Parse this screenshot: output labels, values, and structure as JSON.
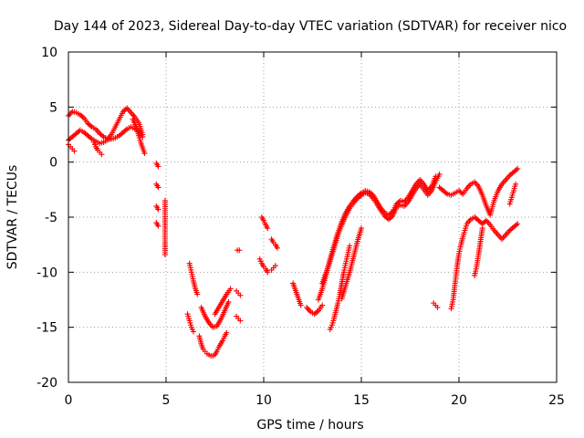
{
  "chart_data": {
    "type": "scatter",
    "title": "Day 144 of 2023, Sidereal Day-to-day VTEC variation (SDTVAR) for receiver nico",
    "xlabel": "GPS time / hours",
    "ylabel": "SDTVAR / TECUs",
    "xlim": [
      0,
      25
    ],
    "ylim": [
      -20,
      10
    ],
    "xticks": [
      0,
      5,
      10,
      15,
      20,
      25
    ],
    "yticks": [
      -20,
      -15,
      -10,
      -5,
      0,
      5,
      10
    ],
    "xtick_labels": [
      "0",
      "5",
      "10",
      "15",
      "20",
      "25"
    ],
    "ytick_labels": [
      "-20",
      "-15",
      "-10",
      "-5",
      "0",
      "5",
      "10"
    ],
    "grid": true,
    "marker": "plus",
    "color": "#ff0000",
    "series": [
      {
        "name": "SDTVAR",
        "segments": [
          {
            "x": [
              0.0,
              0.2,
              0.4,
              0.6,
              0.8,
              1.0,
              1.2,
              1.4,
              1.6,
              1.8,
              2.0,
              2.2,
              2.4,
              2.6,
              2.8,
              3.0,
              3.2,
              3.4,
              3.6,
              3.8
            ],
            "y": [
              4.2,
              4.6,
              4.5,
              4.3,
              4.0,
              3.5,
              3.2,
              3.0,
              2.6,
              2.3,
              2.1,
              2.5,
              3.2,
              3.9,
              4.6,
              4.9,
              4.5,
              4.1,
              3.6,
              2.5
            ]
          },
          {
            "x": [
              0.0,
              0.2,
              0.4,
              0.6,
              0.8,
              1.0,
              1.2,
              1.4,
              1.6,
              1.8,
              2.0,
              2.2,
              2.4,
              2.6,
              2.8,
              3.0,
              3.2,
              3.4,
              3.6,
              3.8
            ],
            "y": [
              2.0,
              2.3,
              2.6,
              2.9,
              2.7,
              2.4,
              2.1,
              1.9,
              1.7,
              1.8,
              2.0,
              2.1,
              2.2,
              2.4,
              2.7,
              3.0,
              3.2,
              3.0,
              2.8,
              2.3
            ]
          },
          {
            "x": [
              0.0,
              0.1,
              0.2,
              0.3
            ],
            "y": [
              1.6,
              1.4,
              1.2,
              1.0
            ]
          },
          {
            "x": [
              1.3,
              1.4,
              1.5,
              1.6,
              1.7
            ],
            "y": [
              1.8,
              1.4,
              1.1,
              0.9,
              0.7
            ]
          },
          {
            "x": [
              3.3,
              3.5,
              3.6,
              3.7,
              3.8,
              3.9
            ],
            "y": [
              3.9,
              3.1,
              2.4,
              1.8,
              1.3,
              0.8
            ]
          },
          {
            "x": [
              4.5,
              4.6
            ],
            "y": [
              -0.1,
              -0.4
            ]
          },
          {
            "x": [
              4.5,
              4.6
            ],
            "y": [
              -2.0,
              -2.3
            ]
          },
          {
            "x": [
              4.5,
              4.6
            ],
            "y": [
              -4.0,
              -4.3
            ]
          },
          {
            "x": [
              4.5,
              4.6
            ],
            "y": [
              -5.5,
              -5.8
            ]
          },
          {
            "x": [
              4.95,
              4.95,
              4.95
            ],
            "y": [
              -3.5,
              -6.8,
              -8.4
            ]
          },
          {
            "x": [
              6.2,
              6.3,
              6.4,
              6.5,
              6.6
            ],
            "y": [
              -9.2,
              -10.0,
              -10.8,
              -11.5,
              -12.0
            ]
          },
          {
            "x": [
              6.1,
              6.2,
              6.3,
              6.4
            ],
            "y": [
              -13.8,
              -14.4,
              -15.0,
              -15.4
            ]
          },
          {
            "x": [
              6.7,
              6.8,
              6.9,
              7.0,
              7.1,
              7.2,
              7.3,
              7.4,
              7.5,
              7.6,
              7.7,
              7.8,
              7.9,
              8.0,
              8.1
            ],
            "y": [
              -15.8,
              -16.5,
              -17.0,
              -17.2,
              -17.4,
              -17.5,
              -17.6,
              -17.6,
              -17.5,
              -17.2,
              -16.8,
              -16.5,
              -16.2,
              -15.8,
              -15.5
            ]
          },
          {
            "x": [
              6.8,
              7.0,
              7.2,
              7.4,
              7.6,
              7.8,
              8.0,
              8.2
            ],
            "y": [
              -13.2,
              -14.0,
              -14.6,
              -15.0,
              -14.9,
              -14.3,
              -13.5,
              -12.7
            ]
          },
          {
            "x": [
              7.5,
              7.7,
              7.9,
              8.1,
              8.3
            ],
            "y": [
              -13.8,
              -13.2,
              -12.6,
              -12.0,
              -11.5
            ]
          },
          {
            "x": [
              8.6,
              8.7,
              8.8
            ],
            "y": [
              -11.7,
              -11.9,
              -12.1
            ]
          },
          {
            "x": [
              8.6,
              8.7,
              8.8
            ],
            "y": [
              -14.0,
              -14.2,
              -14.4
            ]
          },
          {
            "x": [
              8.65,
              8.75
            ],
            "y": [
              -8.0,
              -8.0
            ]
          },
          {
            "x": [
              9.9,
              10.0,
              10.1,
              10.2
            ],
            "y": [
              -5.0,
              -5.3,
              -5.7,
              -6.0
            ]
          },
          {
            "x": [
              9.8,
              9.9,
              10.0,
              10.1,
              10.2
            ],
            "y": [
              -8.8,
              -9.2,
              -9.5,
              -9.7,
              -10.0
            ]
          },
          {
            "x": [
              10.4,
              10.5,
              10.6,
              10.7
            ],
            "y": [
              -7.0,
              -7.3,
              -7.5,
              -7.8
            ]
          },
          {
            "x": [
              10.4,
              10.5,
              10.6
            ],
            "y": [
              -9.8,
              -9.6,
              -9.4
            ]
          },
          {
            "x": [
              11.5,
              11.6,
              11.7,
              11.8,
              11.9
            ],
            "y": [
              -11.0,
              -11.5,
              -12.0,
              -12.5,
              -13.0
            ]
          },
          {
            "x": [
              12.2,
              12.4,
              12.6,
              12.8,
              13.0
            ],
            "y": [
              -13.2,
              -13.6,
              -13.8,
              -13.5,
              -13.0
            ]
          },
          {
            "x": [
              12.8,
              13.0,
              13.2,
              13.4,
              13.6,
              13.8,
              14.0,
              14.2,
              14.4,
              14.6,
              14.8,
              15.0,
              15.2,
              15.4,
              15.6,
              15.8,
              16.0,
              16.2,
              16.4,
              16.6,
              16.8,
              17.0,
              17.2,
              17.4,
              17.6,
              17.8,
              18.0,
              18.2,
              18.4,
              18.6,
              18.8
            ],
            "y": [
              -12.5,
              -11.5,
              -10.2,
              -8.8,
              -7.6,
              -6.4,
              -5.4,
              -4.6,
              -4.0,
              -3.5,
              -3.1,
              -2.8,
              -2.6,
              -2.7,
              -3.0,
              -3.6,
              -4.2,
              -4.6,
              -4.8,
              -4.5,
              -3.8,
              -3.5,
              -3.6,
              -3.2,
              -2.6,
              -2.0,
              -1.6,
              -2.0,
              -2.6,
              -2.2,
              -1.3
            ]
          },
          {
            "x": [
              13.0,
              13.2,
              13.4,
              13.6,
              13.8,
              14.0,
              14.2,
              14.4,
              14.6,
              14.8,
              15.0,
              15.2,
              15.4,
              15.6,
              15.8,
              16.0,
              16.2,
              16.4,
              16.6,
              16.8,
              17.0,
              17.2,
              17.4,
              17.6,
              17.8,
              18.0,
              18.2,
              18.4,
              18.6,
              18.8,
              19.0
            ],
            "y": [
              -11.0,
              -10.0,
              -9.0,
              -7.8,
              -6.6,
              -5.7,
              -4.9,
              -4.2,
              -3.7,
              -3.3,
              -3.0,
              -2.8,
              -2.9,
              -3.3,
              -3.8,
              -4.4,
              -4.9,
              -5.2,
              -4.9,
              -4.1,
              -3.9,
              -4.0,
              -3.6,
              -3.0,
              -2.4,
              -2.0,
              -2.5,
              -3.0,
              -2.6,
              -1.8,
              -1.1
            ]
          },
          {
            "x": [
              14.0,
              14.2,
              14.4,
              14.6,
              14.8,
              15.0
            ],
            "y": [
              -12.4,
              -11.2,
              -10.0,
              -8.6,
              -7.2,
              -6.0
            ]
          },
          {
            "x": [
              13.4,
              13.5,
              13.6,
              13.7,
              13.8,
              13.9,
              14.0,
              14.1,
              14.2,
              14.3,
              14.4
            ],
            "y": [
              -15.2,
              -14.8,
              -14.2,
              -13.5,
              -12.8,
              -12.0,
              -11.0,
              -10.0,
              -9.2,
              -8.4,
              -7.6
            ]
          },
          {
            "x": [
              18.7,
              18.8,
              18.9
            ],
            "y": [
              -12.8,
              -13.0,
              -13.2
            ]
          },
          {
            "x": [
              19.0,
              19.2,
              19.4,
              19.6,
              19.8,
              20.0,
              20.2,
              20.4,
              20.6,
              20.8,
              21.0,
              21.2,
              21.4,
              21.6,
              21.8,
              22.0,
              22.2,
              22.4,
              22.6,
              22.8,
              23.0
            ],
            "y": [
              -2.3,
              -2.6,
              -2.9,
              -3.0,
              -2.8,
              -2.6,
              -2.9,
              -2.4,
              -2.0,
              -1.8,
              -2.2,
              -3.0,
              -4.0,
              -4.8,
              -3.5,
              -2.6,
              -2.0,
              -1.6,
              -1.2,
              -0.9,
              -0.6
            ]
          },
          {
            "x": [
              19.6,
              19.7,
              19.8,
              19.9,
              20.0,
              20.1,
              20.2,
              20.3,
              20.4,
              20.6,
              20.8,
              21.0,
              21.2,
              21.4,
              21.6,
              21.8,
              22.0,
              22.2,
              22.4,
              22.6,
              22.8,
              23.0
            ],
            "y": [
              -13.3,
              -12.5,
              -11.0,
              -9.5,
              -8.3,
              -7.5,
              -6.8,
              -6.2,
              -5.6,
              -5.2,
              -5.0,
              -5.3,
              -5.6,
              -5.3,
              -5.7,
              -6.2,
              -6.6,
              -7.0,
              -6.6,
              -6.2,
              -5.9,
              -5.6
            ]
          },
          {
            "x": [
              20.8,
              20.9,
              21.0,
              21.1,
              21.2
            ],
            "y": [
              -10.3,
              -9.5,
              -8.4,
              -7.2,
              -6.0
            ]
          },
          {
            "x": [
              22.6,
              22.7,
              22.8,
              22.9
            ],
            "y": [
              -3.8,
              -3.2,
              -2.6,
              -2.0
            ]
          }
        ]
      }
    ]
  }
}
